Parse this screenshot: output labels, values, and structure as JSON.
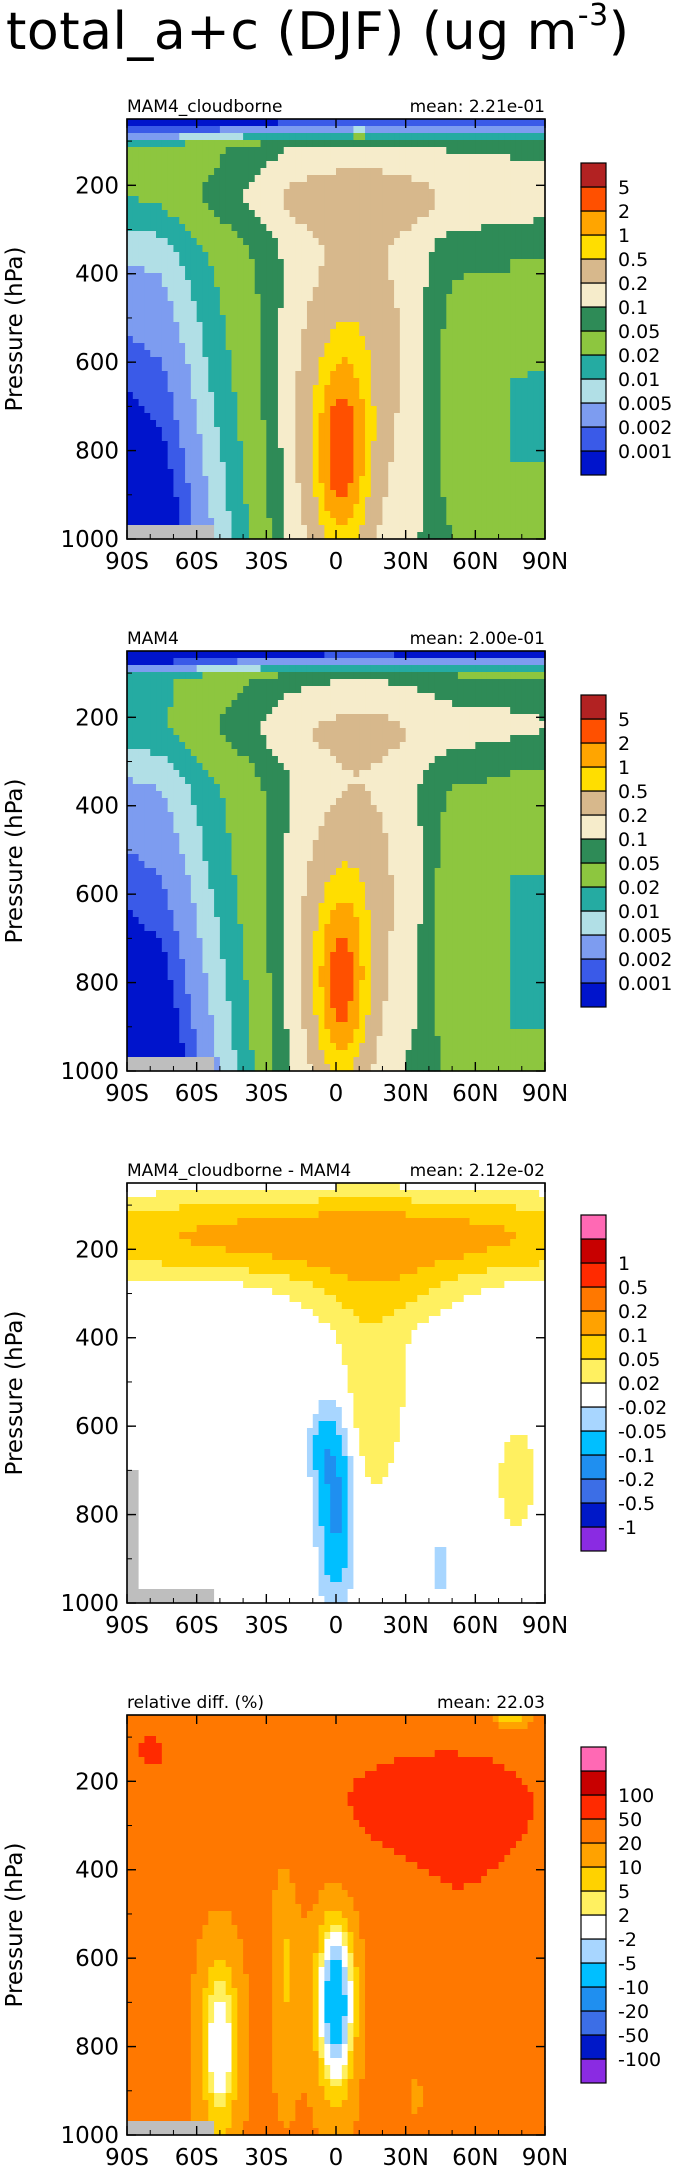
{
  "figure": {
    "title_main": "total_a+c (DJF) (ug m",
    "title_sup": "-3",
    "title_close": ")"
  },
  "colors": {
    "conc_palette": [
      "#0014cc",
      "#3a5ae8",
      "#7d9cf0",
      "#b1dfe6",
      "#25aba2",
      "#8dc63f",
      "#2e8b57",
      "#f6eccb",
      "#d7b88c",
      "#ffde00",
      "#ffa500",
      "#ff5000",
      "#b22222"
    ],
    "diff_palette": [
      "#8a2be2",
      "#0018c8",
      "#3c6ee6",
      "#1f8ff0",
      "#00bfff",
      "#a8d6ff",
      "#ffffff",
      "#fff060",
      "#ffd200",
      "#ffa200",
      "#ff7800",
      "#ff2a00",
      "#c80000",
      "#ff69b4"
    ],
    "missing": "#bebebe"
  },
  "chart_data": [
    {
      "type": "heatmap",
      "left_label": "MAM4_cloudborne",
      "right_label": "mean: 2.21e-01",
      "ylabel": "Pressure (hPa)",
      "x_ticks": [
        "90S",
        "60S",
        "30S",
        "0",
        "30N",
        "60N",
        "90N"
      ],
      "x_range": [
        -90,
        90
      ],
      "y_ticks": [
        200,
        400,
        600,
        800,
        1000
      ],
      "y_range": [
        50,
        1000
      ],
      "y_axis": "pressure, increasing downward",
      "colorbar_labels": [
        "0.001",
        "0.002",
        "0.005",
        "0.01",
        "0.02",
        "0.05",
        "0.1",
        "0.2",
        "0.5",
        "1",
        "2",
        "5"
      ],
      "palette": "conc",
      "field": "cloudborne"
    },
    {
      "type": "heatmap",
      "left_label": "MAM4",
      "right_label": "mean: 2.00e-01",
      "ylabel": "Pressure (hPa)",
      "x_ticks": [
        "90S",
        "60S",
        "30S",
        "0",
        "30N",
        "60N",
        "90N"
      ],
      "x_range": [
        -90,
        90
      ],
      "y_ticks": [
        200,
        400,
        600,
        800,
        1000
      ],
      "y_range": [
        50,
        1000
      ],
      "y_axis": "pressure, increasing downward",
      "colorbar_labels": [
        "0.001",
        "0.002",
        "0.005",
        "0.01",
        "0.02",
        "0.05",
        "0.1",
        "0.2",
        "0.5",
        "1",
        "2",
        "5"
      ],
      "palette": "conc",
      "field": "mam4"
    },
    {
      "type": "heatmap",
      "left_label": "MAM4_cloudborne - MAM4",
      "right_label": "mean: 2.12e-02",
      "ylabel": "Pressure (hPa)",
      "x_ticks": [
        "90S",
        "60S",
        "30S",
        "0",
        "30N",
        "60N",
        "90N"
      ],
      "x_range": [
        -90,
        90
      ],
      "y_ticks": [
        200,
        400,
        600,
        800,
        1000
      ],
      "y_range": [
        50,
        1000
      ],
      "y_axis": "pressure, increasing downward",
      "colorbar_labels": [
        "-1",
        "-0.5",
        "-0.2",
        "-0.1",
        "-0.05",
        "-0.02",
        "0.02",
        "0.05",
        "0.1",
        "0.2",
        "0.5",
        "1"
      ],
      "palette": "diff",
      "field": "diff"
    },
    {
      "type": "heatmap",
      "left_label": "relative diff. (%)",
      "right_label": "mean: 22.03",
      "ylabel": "Pressure (hPa)",
      "x_ticks": [
        "90S",
        "60S",
        "30S",
        "0",
        "30N",
        "60N",
        "90N"
      ],
      "x_range": [
        -90,
        90
      ],
      "y_ticks": [
        200,
        400,
        600,
        800,
        1000
      ],
      "y_range": [
        50,
        1000
      ],
      "y_axis": "pressure, increasing downward",
      "colorbar_labels": [
        "-100",
        "-50",
        "-20",
        "-10",
        "-5",
        "-2",
        "2",
        "5",
        "10",
        "20",
        "50",
        "100"
      ],
      "palette": "diff",
      "field": "reldiff"
    }
  ]
}
